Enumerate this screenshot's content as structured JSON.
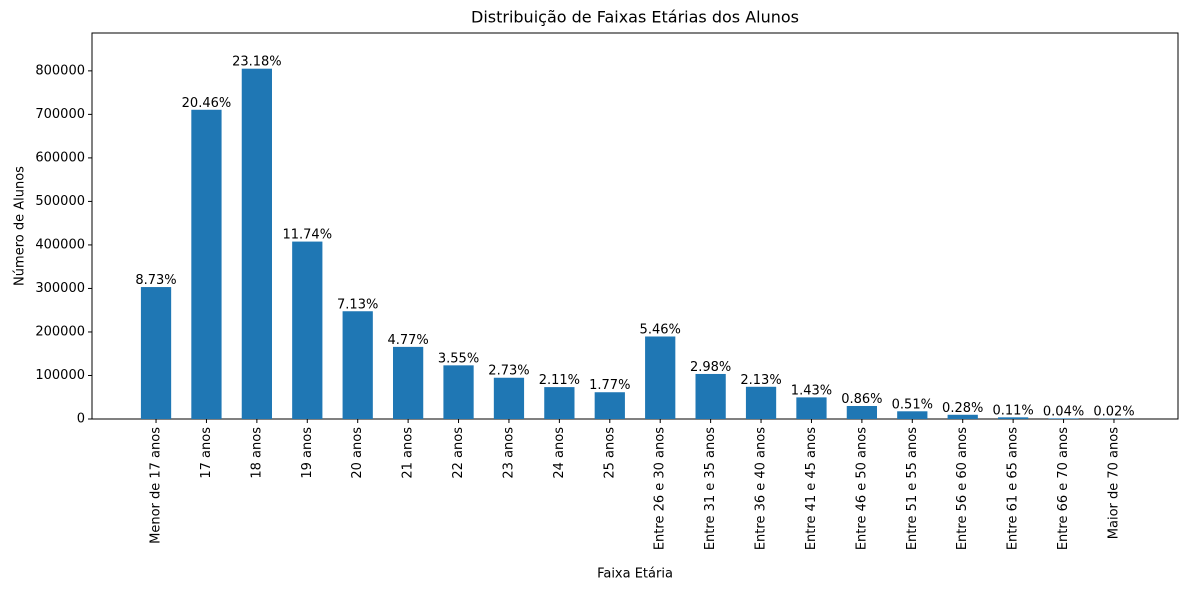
{
  "chart_data": {
    "type": "bar",
    "title": "Distribuição de Faixas Etárias dos Alunos",
    "x_label": "Faixa Etária",
    "y_label": "Número de Alunos",
    "categories": [
      "Menor de 17 anos",
      "17 anos",
      "18 anos",
      "19 anos",
      "20 anos",
      "21 anos",
      "22 anos",
      "23 anos",
      "24 anos",
      "25 anos",
      "Entre 26 e 30 anos",
      "Entre 31 e 35 anos",
      "Entre 36 e 40 anos",
      "Entre 41 e 45 anos",
      "Entre 46 e 50 anos",
      "Entre 51 e 55 anos",
      "Entre 56 e 60 anos",
      "Entre 61 e 65 anos",
      "Entre 66 e 70 anos",
      "Maior de 70 anos"
    ],
    "values": [
      303200,
      710600,
      805000,
      407700,
      247600,
      165700,
      123300,
      94800,
      73300,
      61500,
      189600,
      103500,
      74000,
      49700,
      29900,
      17700,
      9700,
      3800,
      1400,
      700
    ],
    "percent_labels": [
      "8.73%",
      "20.46%",
      "23.18%",
      "11.74%",
      "7.13%",
      "4.77%",
      "3.55%",
      "2.73%",
      "2.11%",
      "1.77%",
      "5.46%",
      "2.98%",
      "2.13%",
      "1.43%",
      "0.86%",
      "0.51%",
      "0.28%",
      "0.11%",
      "0.04%",
      "0.02%"
    ],
    "color": "#1f77b4",
    "ylim": [
      0,
      887000
    ],
    "yticks": [
      0,
      100000,
      200000,
      300000,
      400000,
      500000,
      600000,
      700000,
      800000
    ]
  }
}
